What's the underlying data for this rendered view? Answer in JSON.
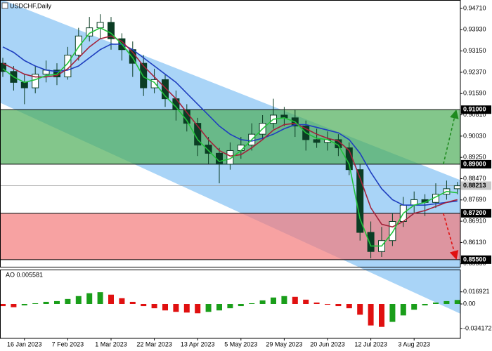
{
  "chart_data": [
    {
      "type": "candlestick",
      "title": "USDCHF,Daily",
      "categories": [
        null,
        null,
        "16 Jan 2023",
        null,
        null,
        null,
        "7 Feb 2023",
        null,
        null,
        null,
        "1 Mar 2023",
        null,
        null,
        null,
        "22 Mar 2023",
        null,
        null,
        null,
        "13 Apr 2023",
        null,
        null,
        null,
        "5 May 2023",
        null,
        null,
        null,
        "29 May 2023",
        null,
        null,
        null,
        "20 Jun 2023",
        null,
        null,
        null,
        "12 Jul 2023",
        null,
        null,
        null,
        "3 Aug 2023",
        null,
        null,
        null,
        null
      ],
      "open": [
        0.927,
        0.924,
        0.92,
        0.918,
        0.923,
        0.9245,
        0.922,
        0.93,
        0.937,
        0.94,
        0.942,
        0.936,
        0.932,
        0.927,
        0.918,
        0.921,
        0.914,
        0.91,
        0.905,
        0.897,
        0.894,
        0.89,
        0.895,
        0.897,
        0.901,
        0.905,
        0.908,
        0.907,
        0.904,
        0.899,
        0.898,
        0.899,
        0.896,
        0.888,
        0.865,
        0.858,
        0.862,
        0.869,
        0.875,
        0.877,
        0.876,
        0.879,
        0.881
      ],
      "high": [
        0.929,
        0.926,
        0.923,
        0.926,
        0.928,
        0.927,
        0.933,
        0.94,
        0.944,
        0.945,
        0.944,
        0.938,
        0.935,
        0.93,
        0.925,
        0.923,
        0.917,
        0.912,
        0.907,
        0.9,
        0.896,
        0.898,
        0.9,
        0.905,
        0.908,
        0.914,
        0.911,
        0.91,
        0.906,
        0.903,
        0.902,
        0.901,
        0.898,
        0.89,
        0.869,
        0.867,
        0.872,
        0.878,
        0.88,
        0.879,
        0.883,
        0.884,
        0.8835
      ],
      "low": [
        0.922,
        0.917,
        0.912,
        0.916,
        0.92,
        0.919,
        0.921,
        0.928,
        0.935,
        0.936,
        0.932,
        0.928,
        0.922,
        0.915,
        0.916,
        0.911,
        0.906,
        0.902,
        0.893,
        0.89,
        0.883,
        0.888,
        0.892,
        0.895,
        0.899,
        0.903,
        0.904,
        0.9,
        0.895,
        0.896,
        0.895,
        0.893,
        0.886,
        0.862,
        0.8555,
        0.856,
        0.86,
        0.867,
        0.872,
        0.871,
        0.874,
        0.877,
        0.879
      ],
      "close": [
        0.924,
        0.92,
        0.918,
        0.923,
        0.9245,
        0.922,
        0.93,
        0.937,
        0.94,
        0.942,
        0.936,
        0.932,
        0.927,
        0.918,
        0.921,
        0.914,
        0.91,
        0.905,
        0.897,
        0.894,
        0.89,
        0.895,
        0.897,
        0.901,
        0.905,
        0.908,
        0.907,
        0.904,
        0.899,
        0.898,
        0.899,
        0.896,
        0.888,
        0.865,
        0.858,
        0.862,
        0.869,
        0.875,
        0.877,
        0.876,
        0.879,
        0.881,
        0.8821
      ],
      "color": "#0b3d24",
      "moving_averages": [
        {
          "color": "#1f3fbf",
          "values": [
            0.933,
            0.931,
            0.928,
            0.926,
            0.9245,
            0.924,
            0.9245,
            0.926,
            0.929,
            0.932,
            0.934,
            0.934,
            0.932,
            0.929,
            0.926,
            0.923,
            0.92,
            0.916,
            0.912,
            0.908,
            0.904,
            0.901,
            0.899,
            0.8985,
            0.8995,
            0.901,
            0.903,
            0.9045,
            0.9045,
            0.9035,
            0.9025,
            0.9015,
            0.899,
            0.894,
            0.887,
            0.881,
            0.877,
            0.875,
            0.875,
            0.875,
            0.8755,
            0.876,
            0.8765
          ]
        },
        {
          "color": "#a3223a",
          "values": [
            0.927,
            0.925,
            0.923,
            0.922,
            0.922,
            0.9225,
            0.925,
            0.929,
            0.933,
            0.936,
            0.937,
            0.935,
            0.931,
            0.926,
            0.922,
            0.918,
            0.914,
            0.909,
            0.904,
            0.899,
            0.895,
            0.893,
            0.8935,
            0.896,
            0.899,
            0.9025,
            0.9045,
            0.905,
            0.903,
            0.901,
            0.8995,
            0.8985,
            0.895,
            0.885,
            0.874,
            0.868,
            0.867,
            0.869,
            0.872,
            0.873,
            0.8745,
            0.876,
            0.877
          ]
        },
        {
          "color": "#22c23a",
          "values": [
            0.925,
            0.922,
            0.92,
            0.921,
            0.9225,
            0.923,
            0.927,
            0.933,
            0.938,
            0.94,
            0.938,
            0.934,
            0.929,
            0.922,
            0.92,
            0.915,
            0.911,
            0.906,
            0.899,
            0.895,
            0.891,
            0.892,
            0.895,
            0.899,
            0.903,
            0.9065,
            0.907,
            0.9055,
            0.9015,
            0.8995,
            0.899,
            0.897,
            0.89,
            0.87,
            0.86,
            0.86,
            0.865,
            0.872,
            0.875,
            0.876,
            0.878,
            0.88,
            0.8795
          ]
        }
      ],
      "channel": {
        "color": "#a9d4f7",
        "upper": [
          0.9502,
          0.8846
        ],
        "lower": [
          0.9121,
          0.8357
        ]
      },
      "zones": [
        {
          "color": "#4fae5a",
          "target": "top",
          "top": {
            "value": 0.91,
            "label": "0.91000"
          },
          "bottom": {
            "value": 0.89,
            "label": "0.89000"
          }
        },
        {
          "color": "#f47a7a",
          "target": "bottom",
          "top": {
            "value": 0.872,
            "label": "0.87200"
          },
          "bottom": {
            "value": 0.855,
            "label": "0.85500"
          }
        }
      ],
      "last_price": {
        "value": 0.88213,
        "label": "0.88213"
      },
      "ylim": [
        0.8524,
        0.9502
      ],
      "yticks": [
        {
          "value": 0.9471,
          "label": "0.94710"
        },
        {
          "value": 0.9393,
          "label": "0.93930"
        },
        {
          "value": 0.9315,
          "label": "0.93150"
        },
        {
          "value": 0.9237,
          "label": "0.92370"
        },
        {
          "value": 0.9159,
          "label": "0.91590"
        },
        {
          "value": 0.9081,
          "label": "0.90810"
        },
        {
          "value": 0.9003,
          "label": "0.90030"
        },
        {
          "value": 0.8925,
          "label": "0.89250"
        },
        {
          "value": 0.8847,
          "label": "0.88470"
        },
        {
          "value": 0.8769,
          "label": "0.87690"
        },
        {
          "value": 0.8691,
          "label": "0.86910"
        },
        {
          "value": 0.8613,
          "label": "0.86130"
        },
        {
          "value": 0.8535,
          "label": "0.85350"
        }
      ]
    },
    {
      "type": "histogram-indicator",
      "title": "AO 0.005581",
      "values": [
        -0.003,
        -0.0045,
        -0.002,
        0.001,
        0.003,
        0.004,
        0.007,
        0.011,
        0.015,
        0.0165,
        0.013,
        0.008,
        0.003,
        -0.003,
        -0.006,
        -0.009,
        -0.011,
        -0.012,
        -0.013,
        -0.011,
        -0.009,
        -0.006,
        -0.003,
        0.001,
        0.005,
        0.009,
        0.011,
        0.01,
        0.006,
        0.002,
        -0.001,
        -0.003,
        -0.006,
        -0.015,
        -0.03,
        -0.032,
        -0.025,
        -0.016,
        -0.008,
        -0.002,
        0.002,
        0.004,
        0.005581
      ],
      "up_color": "#1a9e1a",
      "down_color": "#e01010",
      "ylim": [
        -0.048,
        0.048
      ],
      "yticks": [
        0.016921,
        {
          "value": 0,
          "label": "0.00"
        },
        -0.034172
      ]
    }
  ]
}
